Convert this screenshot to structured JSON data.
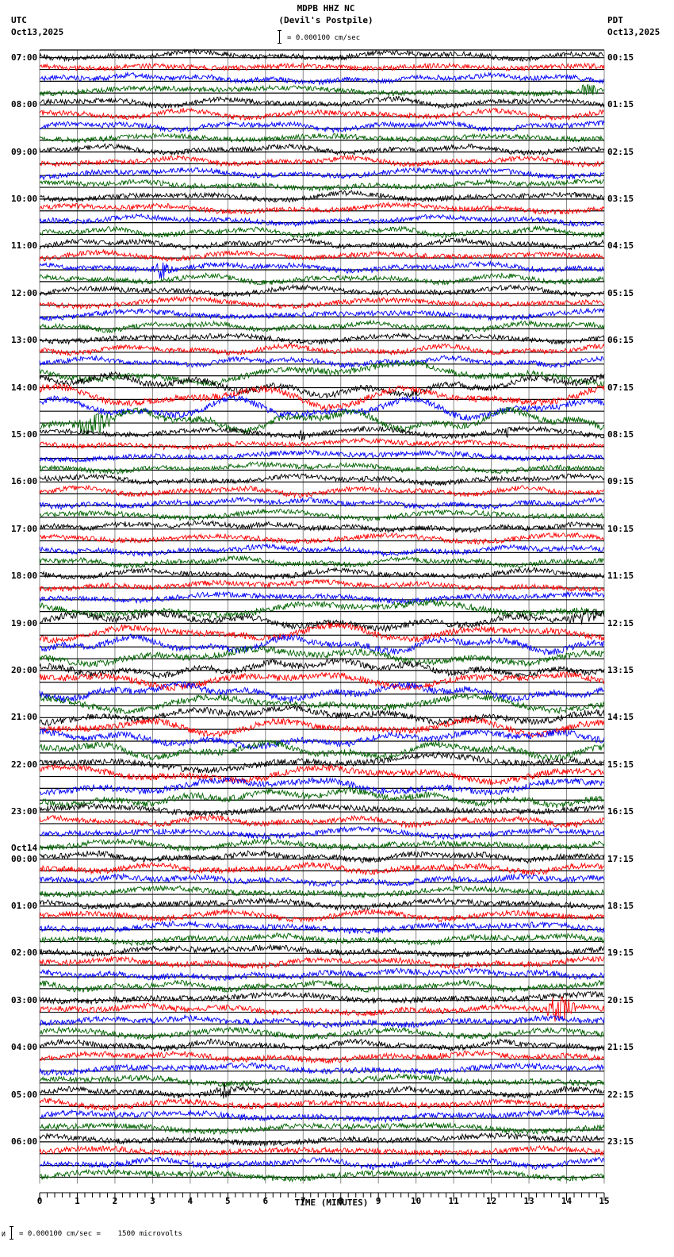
{
  "header": {
    "station": "MDPB HHZ NC",
    "location": "(Devil's Postpile)",
    "scale_text": "= 0.000100 cm/sec",
    "left_timezone": "UTC",
    "left_date": "Oct13,2025",
    "right_timezone": "PDT",
    "right_date": "Oct13,2025"
  },
  "footer": {
    "scale_text": "= 0.000100 cm/sec =    1500 microvolts",
    "prefix_mark": "И"
  },
  "chart_data": {
    "type": "line",
    "title": "MDPB HHZ NC (Devil's Postpile)",
    "xlabel": "TIME (MINUTES)",
    "ylabel": "",
    "xlim": [
      0,
      15
    ],
    "x_ticks": [
      "0",
      "1",
      "2",
      "3",
      "4",
      "5",
      "6",
      "7",
      "8",
      "9",
      "10",
      "11",
      "12",
      "13",
      "14",
      "15"
    ],
    "minor_ticks_per_minute": 5,
    "grid": {
      "vertical": true,
      "vertical_every_minutes": 1,
      "horizontal_baselines": true
    },
    "traces_per_hour": 4,
    "trace_minutes": 15,
    "color_cycle": [
      "#000000",
      "#ff0000",
      "#0000ff",
      "#006400"
    ],
    "gridline_color": "#888888",
    "scale": "0.000100 cm/sec = 1500 microvolts",
    "left_labels": [
      {
        "row": 0,
        "text": "07:00"
      },
      {
        "row": 4,
        "text": "08:00"
      },
      {
        "row": 8,
        "text": "09:00"
      },
      {
        "row": 12,
        "text": "10:00"
      },
      {
        "row": 16,
        "text": "11:00"
      },
      {
        "row": 20,
        "text": "12:00"
      },
      {
        "row": 24,
        "text": "13:00"
      },
      {
        "row": 28,
        "text": "14:00"
      },
      {
        "row": 32,
        "text": "15:00"
      },
      {
        "row": 36,
        "text": "16:00"
      },
      {
        "row": 40,
        "text": "17:00"
      },
      {
        "row": 44,
        "text": "18:00"
      },
      {
        "row": 48,
        "text": "19:00"
      },
      {
        "row": 52,
        "text": "20:00"
      },
      {
        "row": 56,
        "text": "21:00"
      },
      {
        "row": 60,
        "text": "22:00"
      },
      {
        "row": 64,
        "text": "23:00"
      },
      {
        "row": 68,
        "text": "00:00",
        "date": "Oct14"
      },
      {
        "row": 72,
        "text": "01:00"
      },
      {
        "row": 76,
        "text": "02:00"
      },
      {
        "row": 80,
        "text": "03:00"
      },
      {
        "row": 84,
        "text": "04:00"
      },
      {
        "row": 88,
        "text": "05:00"
      },
      {
        "row": 92,
        "text": "06:00"
      }
    ],
    "right_labels": [
      {
        "row": 0,
        "text": "00:15"
      },
      {
        "row": 4,
        "text": "01:15"
      },
      {
        "row": 8,
        "text": "02:15"
      },
      {
        "row": 12,
        "text": "03:15"
      },
      {
        "row": 16,
        "text": "04:15"
      },
      {
        "row": 20,
        "text": "05:15"
      },
      {
        "row": 24,
        "text": "06:15"
      },
      {
        "row": 28,
        "text": "07:15"
      },
      {
        "row": 32,
        "text": "08:15"
      },
      {
        "row": 36,
        "text": "09:15"
      },
      {
        "row": 40,
        "text": "10:15"
      },
      {
        "row": 44,
        "text": "11:15"
      },
      {
        "row": 48,
        "text": "12:15"
      },
      {
        "row": 52,
        "text": "13:15"
      },
      {
        "row": 56,
        "text": "14:15"
      },
      {
        "row": 60,
        "text": "15:15"
      },
      {
        "row": 64,
        "text": "16:15"
      },
      {
        "row": 68,
        "text": "17:15"
      },
      {
        "row": 72,
        "text": "18:15"
      },
      {
        "row": 76,
        "text": "19:15"
      },
      {
        "row": 80,
        "text": "20:15"
      },
      {
        "row": 84,
        "text": "21:15"
      },
      {
        "row": 88,
        "text": "22:15"
      },
      {
        "row": 92,
        "text": "23:15"
      }
    ],
    "row_count": 96,
    "noise_profile": [
      {
        "from_row": 0,
        "to_row": 27,
        "amplitude": 4,
        "drift": 5
      },
      {
        "from_row": 27,
        "to_row": 32,
        "amplitude": 5,
        "drift": 14
      },
      {
        "from_row": 32,
        "to_row": 47,
        "amplitude": 4,
        "drift": 5
      },
      {
        "from_row": 47,
        "to_row": 64,
        "amplitude": 5,
        "drift": 10
      },
      {
        "from_row": 64,
        "to_row": 96,
        "amplitude": 4.5,
        "drift": 5
      }
    ],
    "events": [
      {
        "row": 3,
        "minute": 14.6,
        "amplitude": 10,
        "duration_min": 0.5
      },
      {
        "row": 18,
        "minute": 3.2,
        "amplitude": 12,
        "duration_min": 0.4
      },
      {
        "row": 31,
        "minute": 1.5,
        "amplitude": 18,
        "duration_min": 0.6
      },
      {
        "row": 32,
        "minute": 12.4,
        "amplitude": 8,
        "duration_min": 0.2
      },
      {
        "row": 32,
        "minute": 7.0,
        "amplitude": 8,
        "duration_min": 0.15
      },
      {
        "row": 48,
        "minute": 14.5,
        "amplitude": 9,
        "duration_min": 0.5
      },
      {
        "row": 81,
        "minute": 13.8,
        "amplitude": 22,
        "duration_min": 0.5
      },
      {
        "row": 88,
        "minute": 4.9,
        "amplitude": 12,
        "duration_min": 0.3
      }
    ]
  }
}
